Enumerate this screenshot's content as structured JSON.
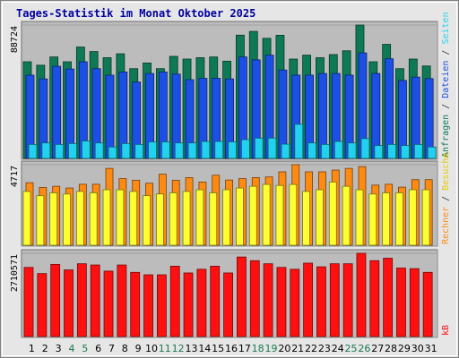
{
  "title": "Tages-Statistik im Monat Oktober 2025",
  "colors": {
    "anfragen": "#0d7a55",
    "dateien": "#1c4fe6",
    "seiten": "#22d1ee",
    "besuche": "#ffff30",
    "rechner": "#ff8a12",
    "kb": "#ff1010",
    "panel_bg": "#bcbcbc",
    "day_default": "#000000",
    "day_weekend": "#1a7a50"
  },
  "right_labels": {
    "top": [
      {
        "text": "Anfragen",
        "color": "#0d7a55"
      },
      {
        "text": " / ",
        "color": "#303030"
      },
      {
        "text": "Dateien",
        "color": "#1c4fe6"
      },
      {
        "text": " / ",
        "color": "#303030"
      },
      {
        "text": "Seiten",
        "color": "#22d1ee"
      }
    ],
    "middle": [
      {
        "text": "Rechner",
        "color": "#ff8a12"
      },
      {
        "text": " / ",
        "color": "#303030"
      },
      {
        "text": "Besuche",
        "color": "#e8c800"
      }
    ],
    "bottom": [
      {
        "text": "kB",
        "color": "#ff1010"
      }
    ]
  },
  "chart_data": {
    "type": "bar",
    "title": "Tages-Statistik im Monat Oktober 2025",
    "days": [
      "1",
      "2",
      "3",
      "4",
      "5",
      "6",
      "7",
      "8",
      "9",
      "10",
      "11",
      "12",
      "13",
      "14",
      "15",
      "16",
      "17",
      "18",
      "19",
      "20",
      "21",
      "22",
      "23",
      "24",
      "25",
      "26",
      "27",
      "28",
      "29",
      "30",
      "31"
    ],
    "weekend_days": [
      "4",
      "5",
      "11",
      "12",
      "18",
      "19",
      "25",
      "26"
    ],
    "panels": [
      {
        "id": "top",
        "ymax_label": "88724",
        "ymax": 88724,
        "series": [
          {
            "name": "Anfragen",
            "values": [
              64300,
              62000,
              67500,
              64300,
              74100,
              71100,
              67000,
              69600,
              59700,
              63500,
              59700,
              67900,
              66100,
              67000,
              67500,
              64700,
              82000,
              84500,
              79900,
              81900,
              66100,
              68700,
              67000,
              69100,
              71600,
              88724,
              64300,
              75900,
              59700,
              66100,
              61500
            ]
          },
          {
            "name": "Dateien",
            "values": [
              55400,
              52900,
              61300,
              59500,
              64300,
              59700,
              55400,
              57500,
              50800,
              56500,
              57500,
              56100,
              52400,
              53300,
              53300,
              52900,
              67500,
              65600,
              68700,
              58800,
              55400,
              55400,
              56500,
              56500,
              55400,
              70200,
              56500,
              66300,
              51900,
              54100,
              53100
            ]
          },
          {
            "name": "Seiten",
            "values": [
              9300,
              10300,
              9300,
              9900,
              11600,
              10300,
              7600,
              9900,
              9300,
              11000,
              11000,
              10300,
              10300,
              11300,
              11300,
              11000,
              12500,
              13500,
              13500,
              9500,
              22700,
              10300,
              9300,
              11300,
              10300,
              13200,
              8600,
              9300,
              8600,
              9300,
              7600
            ]
          }
        ]
      },
      {
        "id": "middle",
        "ymax_label": "4717",
        "ymax": 4717,
        "series": [
          {
            "name": "Rechner",
            "values": [
              3660,
              3380,
              3450,
              3350,
              3570,
              3570,
              4500,
              3900,
              3800,
              3630,
              4160,
              3800,
              3960,
              3700,
              4100,
              3820,
              3900,
              3960,
              4000,
              4300,
              4717,
              4300,
              4300,
              4400,
              4500,
              4600,
              3520,
              3570,
              3400,
              3840,
              3840
            ]
          },
          {
            "name": "Besuche",
            "values": [
              3150,
              2900,
              3070,
              3000,
              3150,
              3070,
              3250,
              3250,
              3150,
              2900,
              3000,
              3070,
              3150,
              3250,
              3070,
              3250,
              3350,
              3450,
              3560,
              3500,
              3560,
              3150,
              3250,
              3700,
              3450,
              3250,
              3000,
              3070,
              3070,
              3250,
              3250
            ]
          }
        ]
      },
      {
        "id": "bottom",
        "ymax_label": "2710571",
        "ymax": 2710571,
        "series": [
          {
            "name": "kB",
            "values": [
              2250000,
              2050000,
              2350000,
              2170000,
              2370000,
              2330000,
              2130000,
              2330000,
              2090000,
              2010000,
              2010000,
              2290000,
              2070000,
              2190000,
              2290000,
              2070000,
              2590000,
              2470000,
              2370000,
              2250000,
              2190000,
              2390000,
              2270000,
              2370000,
              2370000,
              2710571,
              2470000,
              2550000,
              2230000,
              2210000,
              2090000
            ]
          }
        ]
      }
    ]
  }
}
